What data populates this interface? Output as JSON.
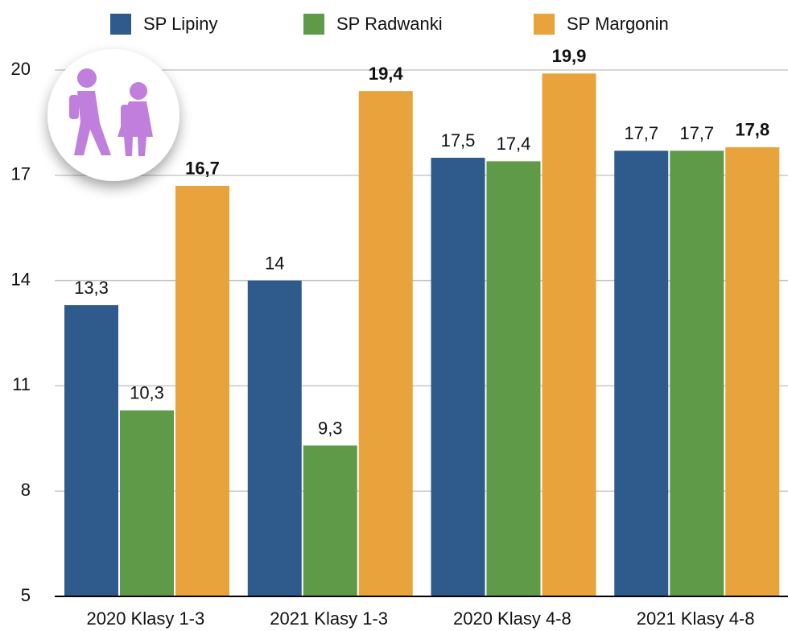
{
  "chart_data": {
    "type": "bar",
    "categories": [
      "2020 Klasy 1-3",
      "2021 Klasy 1-3",
      "2020 Klasy 4-8",
      "2021 Klasy 4-8"
    ],
    "series": [
      {
        "name": "SP Lipiny",
        "color": "#2e5a8c",
        "values": [
          13.3,
          14,
          17.5,
          17.7
        ],
        "value_labels": [
          "13,3",
          "14",
          "17,5",
          "17,7"
        ]
      },
      {
        "name": "SP Radwanki",
        "color": "#5e9a48",
        "values": [
          10.3,
          9.3,
          17.4,
          17.7
        ],
        "value_labels": [
          "10,3",
          "9,3",
          "17,4",
          "17,7"
        ]
      },
      {
        "name": "SP Margonin",
        "color": "#e8a33d",
        "values": [
          16.7,
          19.4,
          19.9,
          17.8
        ],
        "value_labels": [
          "16,7",
          "19,4",
          "19,9",
          "17,8"
        ]
      }
    ],
    "ylim": [
      5,
      20
    ],
    "yticks": [
      5,
      8,
      11,
      14,
      17,
      20
    ],
    "grid": true,
    "legend": "top"
  }
}
